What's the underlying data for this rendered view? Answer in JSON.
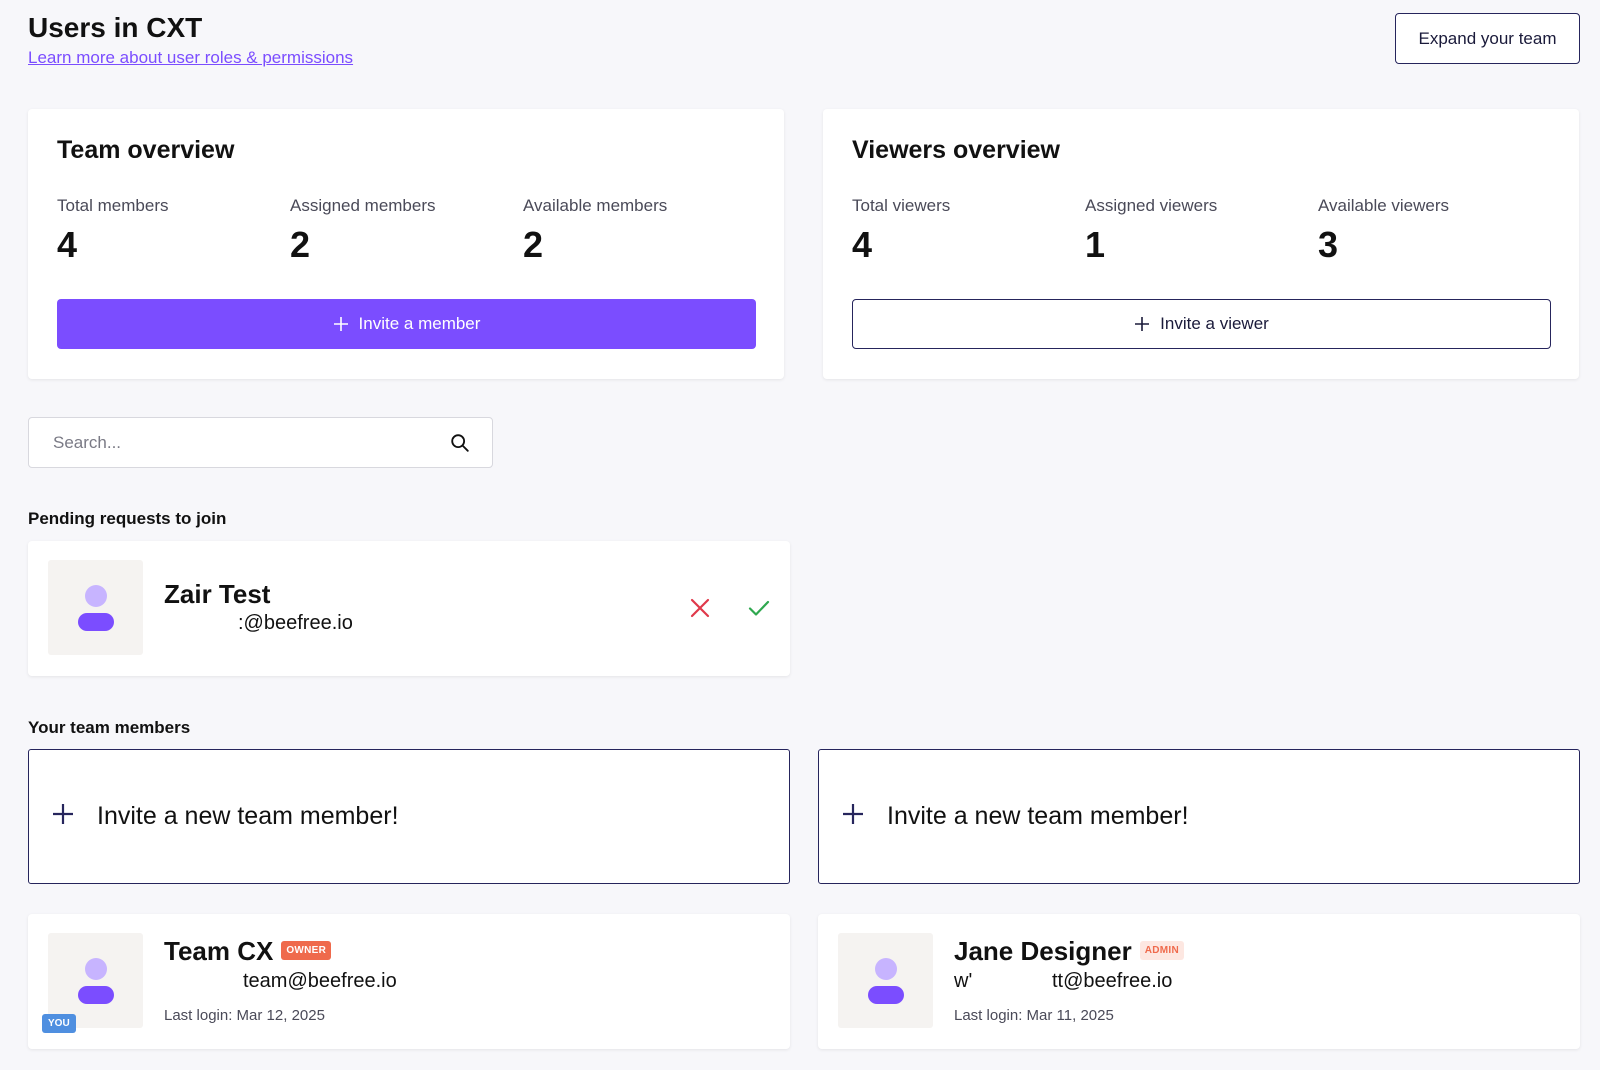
{
  "header": {
    "title": "Users in CXT",
    "roles_link": "Learn more about user roles & permissions",
    "expand_button": "Expand your team"
  },
  "team_overview": {
    "title": "Team overview",
    "stats": [
      {
        "label": "Total members",
        "value": "4"
      },
      {
        "label": "Assigned members",
        "value": "2"
      },
      {
        "label": "Available members",
        "value": "2"
      }
    ],
    "button": "Invite a member"
  },
  "viewers_overview": {
    "title": "Viewers overview",
    "stats": [
      {
        "label": "Total viewers",
        "value": "4"
      },
      {
        "label": "Assigned viewers",
        "value": "1"
      },
      {
        "label": "Available viewers",
        "value": "3"
      }
    ],
    "button": "Invite a viewer"
  },
  "search": {
    "placeholder": "Search...",
    "value": ""
  },
  "pending": {
    "section_label": "Pending requests to join",
    "requests": [
      {
        "name": "Zair Test",
        "email": ":@beefree.io"
      }
    ]
  },
  "team_members": {
    "section_label": "Your team members",
    "invite_card_label": "Invite a new team member!",
    "members": [
      {
        "name": "Team CX",
        "role": "OWNER",
        "email": "team@beefree.io",
        "last_login": "Last login: Mar 12, 2025",
        "you_badge": "YOU"
      },
      {
        "name": "Jane Designer",
        "role": "ADMIN",
        "email_prefix": "w'",
        "email": "tt@beefree.io",
        "last_login": "Last login: Mar 11, 2025"
      }
    ]
  },
  "colors": {
    "accent": "#7b4dff",
    "navy": "#26255c",
    "owner_badge": "#ef6a4c",
    "you_badge": "#4f8fe0",
    "reject": "#e0394a",
    "accept": "#2fa84f"
  },
  "icons": [
    "plus-icon",
    "search-icon",
    "user-avatar-icon",
    "reject-x-icon",
    "accept-check-icon"
  ]
}
